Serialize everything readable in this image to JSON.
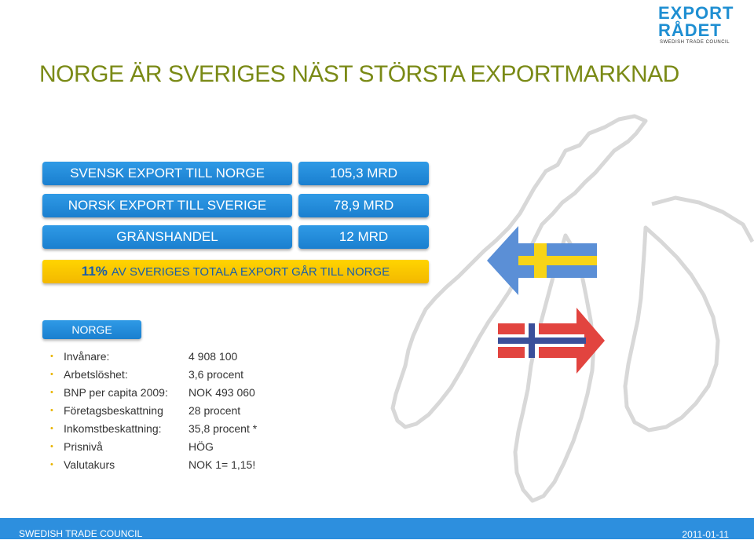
{
  "logo": {
    "line1": "EXPORT",
    "line2": "RÅDET",
    "line3": "SWEDISH TRADE COUNCIL"
  },
  "title": "NORGE ÄR SVERIGES NÄST STÖRSTA EXPORTMARKNAD",
  "trade_rows": [
    {
      "label": "SVENSK EXPORT TILL NORGE",
      "value": "105,3 MRD"
    },
    {
      "label": "NORSK EXPORT TILL SVERIGE",
      "value": "78,9 MRD"
    },
    {
      "label": "GRÄNSHANDEL",
      "value": "12 MRD"
    }
  ],
  "highlight": {
    "pct": "11%",
    "text": "AV SVERIGES TOTALA EXPORT GÅR TILL NORGE"
  },
  "section_tab": "NORGE",
  "facts": [
    {
      "key": "Invånare:",
      "value": "4 908 100"
    },
    {
      "key": "Arbetslöshet:",
      "value": "3,6 procent"
    },
    {
      "key": "BNP per capita 2009:",
      "value": "NOK 493 060"
    },
    {
      "key": "Företagsbeskattning",
      "value": "28 procent"
    },
    {
      "key": "Inkomstbeskattning:",
      "value": "35,8 procent *"
    },
    {
      "key": "Prisnivå",
      "value": "HÖG"
    },
    {
      "key": "Valutakurs",
      "value": "NOK 1= 1,15!"
    }
  ],
  "footer": {
    "left": "SWEDISH TRADE COUNCIL",
    "right": "2011-01-11"
  },
  "colors": {
    "title": "#7a8a16",
    "blue": "#2d8fde",
    "yellow": "#ffd400",
    "sweden_blue": "#5b8fd6",
    "sweden_yellow": "#f7d417",
    "norway_red": "#e2443f",
    "norway_blue": "#3a4f9a"
  }
}
